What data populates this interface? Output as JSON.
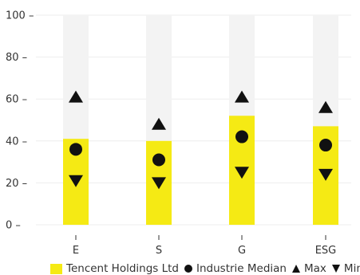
{
  "chart_data": {
    "type": "bar",
    "categories": [
      "E",
      "S",
      "G",
      "ESG"
    ],
    "ylim": [
      0,
      100
    ],
    "yticks": [
      0,
      20,
      40,
      60,
      80,
      100
    ],
    "grid": true,
    "legend_position": "bottom",
    "series": [
      {
        "name": "Tencent Holdings Ltd",
        "kind": "bar",
        "values": [
          41,
          40,
          52,
          47
        ],
        "color": "#f5ea14"
      },
      {
        "name": "Industrie Median",
        "kind": "circle",
        "values": [
          36,
          31,
          42,
          38
        ],
        "color": "#111111"
      },
      {
        "name": "Max",
        "kind": "triangle-up",
        "values": [
          61,
          48,
          61,
          56
        ],
        "color": "#111111"
      },
      {
        "name": "Min",
        "kind": "triangle-down",
        "values": [
          21,
          20,
          25,
          24
        ],
        "color": "#111111"
      }
    ],
    "background_bar_color": "#f3f3f3"
  }
}
